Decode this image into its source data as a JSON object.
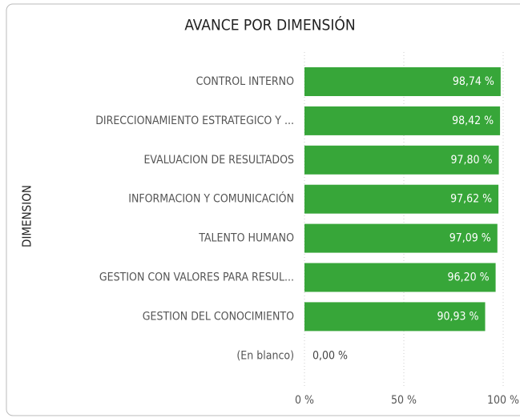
{
  "chart_data": {
    "type": "hbar",
    "title": "AVANCE POR DIMENSIÓN",
    "y_axis_label": "DIMENSION",
    "categories": [
      "CONTROL INTERNO",
      "DIRECCIONAMIENTO ESTRATEGICO Y ...",
      "EVALUACION DE RESULTADOS",
      "INFORMACION Y COMUNICACIÓN",
      "TALENTO HUMANO",
      "GESTION CON VALORES PARA RESUL...",
      "GESTION DEL CONOCIMIENTO",
      "(En blanco)"
    ],
    "values": [
      98.74,
      98.42,
      97.8,
      97.62,
      97.09,
      96.2,
      90.93,
      0
    ],
    "value_labels": [
      "98,74 %",
      "98,42 %",
      "97,80 %",
      "97,62 %",
      "97,09 %",
      "96,20 %",
      "90,93 %",
      "0,00 %"
    ],
    "color": "#37a639",
    "xlim": [
      0,
      100
    ],
    "xticks": [
      {
        "value": 0,
        "label": "0 %"
      },
      {
        "value": 50,
        "label": "50 %"
      },
      {
        "value": 100,
        "label": "100 %"
      }
    ],
    "grid": true
  }
}
